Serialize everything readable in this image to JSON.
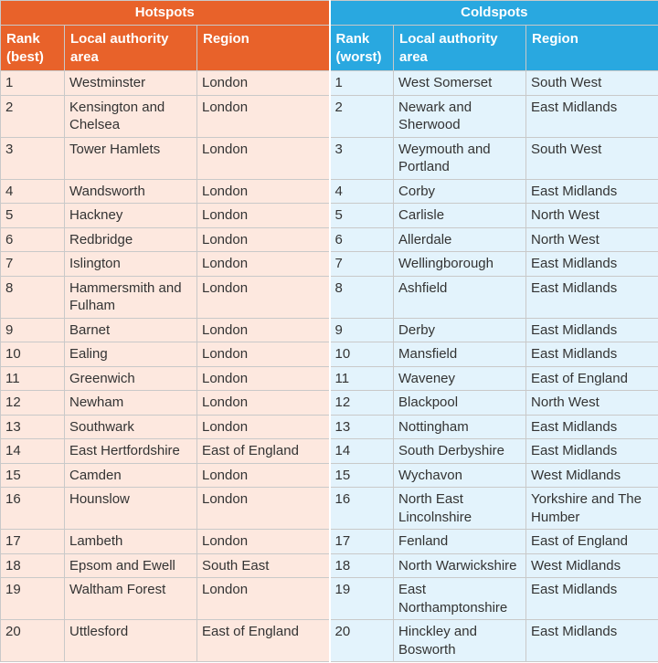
{
  "headers": {
    "hotspots": "Hotspots",
    "coldspots": "Coldspots",
    "hot_rank": "Rank (best)",
    "hot_area": "Local authority area",
    "hot_region": "Region",
    "cold_rank": "Rank (worst)",
    "cold_area": "Local authority area",
    "cold_region": "Region"
  },
  "colors": {
    "hot_header": "#e8622a",
    "cold_header": "#29a8e0",
    "hot_cell": "#fde8df",
    "cold_cell": "#e3f3fc"
  },
  "rows": [
    {
      "hr": "1",
      "ha": "Westminster",
      "hg": "London",
      "cr": "1",
      "ca": "West Somerset",
      "cg": "South West"
    },
    {
      "hr": "2",
      "ha": "Kensington and Chelsea",
      "hg": "London",
      "cr": "2",
      "ca": "Newark and Sherwood",
      "cg": "East Midlands"
    },
    {
      "hr": "3",
      "ha": "Tower Hamlets",
      "hg": "London",
      "cr": "3",
      "ca": "Weymouth and Portland",
      "cg": "South West"
    },
    {
      "hr": "4",
      "ha": "Wandsworth",
      "hg": "London",
      "cr": "4",
      "ca": "Corby",
      "cg": "East Midlands"
    },
    {
      "hr": "5",
      "ha": "Hackney",
      "hg": "London",
      "cr": "5",
      "ca": "Carlisle",
      "cg": "North West"
    },
    {
      "hr": "6",
      "ha": "Redbridge",
      "hg": "London",
      "cr": "6",
      "ca": "Allerdale",
      "cg": "North West"
    },
    {
      "hr": "7",
      "ha": "Islington",
      "hg": "London",
      "cr": "7",
      "ca": "Wellingborough",
      "cg": "East Midlands"
    },
    {
      "hr": "8",
      "ha": "Hammersmith and Fulham",
      "hg": "London",
      "cr": "8",
      "ca": "Ashfield",
      "cg": "East Midlands"
    },
    {
      "hr": "9",
      "ha": "Barnet",
      "hg": "London",
      "cr": "9",
      "ca": "Derby",
      "cg": "East Midlands"
    },
    {
      "hr": "10",
      "ha": "Ealing",
      "hg": "London",
      "cr": "10",
      "ca": "Mansfield",
      "cg": "East Midlands"
    },
    {
      "hr": "11",
      "ha": "Greenwich",
      "hg": "London",
      "cr": "11",
      "ca": "Waveney",
      "cg": "East of England"
    },
    {
      "hr": "12",
      "ha": "Newham",
      "hg": "London",
      "cr": "12",
      "ca": "Blackpool",
      "cg": "North West"
    },
    {
      "hr": "13",
      "ha": "Southwark",
      "hg": "London",
      "cr": "13",
      "ca": "Nottingham",
      "cg": "East Midlands"
    },
    {
      "hr": "14",
      "ha": "East Hertfordshire",
      "hg": "East of England",
      "cr": "14",
      "ca": "South Derbyshire",
      "cg": "East Midlands"
    },
    {
      "hr": "15",
      "ha": "Camden",
      "hg": "London",
      "cr": "15",
      "ca": "Wychavon",
      "cg": "West Midlands"
    },
    {
      "hr": "16",
      "ha": "Hounslow",
      "hg": "London",
      "cr": "16",
      "ca": "North East Lincolnshire",
      "cg": "Yorkshire and The Humber"
    },
    {
      "hr": "17",
      "ha": "Lambeth",
      "hg": "London",
      "cr": "17",
      "ca": "Fenland",
      "cg": "East of England"
    },
    {
      "hr": "18",
      "ha": "Epsom and Ewell",
      "hg": "South East",
      "cr": "18",
      "ca": "North Warwickshire",
      "cg": "West Midlands"
    },
    {
      "hr": "19",
      "ha": "Waltham Forest",
      "hg": "London",
      "cr": "19",
      "ca": "East Northamptonshire",
      "cg": "East Midlands"
    },
    {
      "hr": "20",
      "ha": "Uttlesford",
      "hg": "East of England",
      "cr": "20",
      "ca": "Hinckley and Bosworth",
      "cg": "East Midlands"
    }
  ]
}
